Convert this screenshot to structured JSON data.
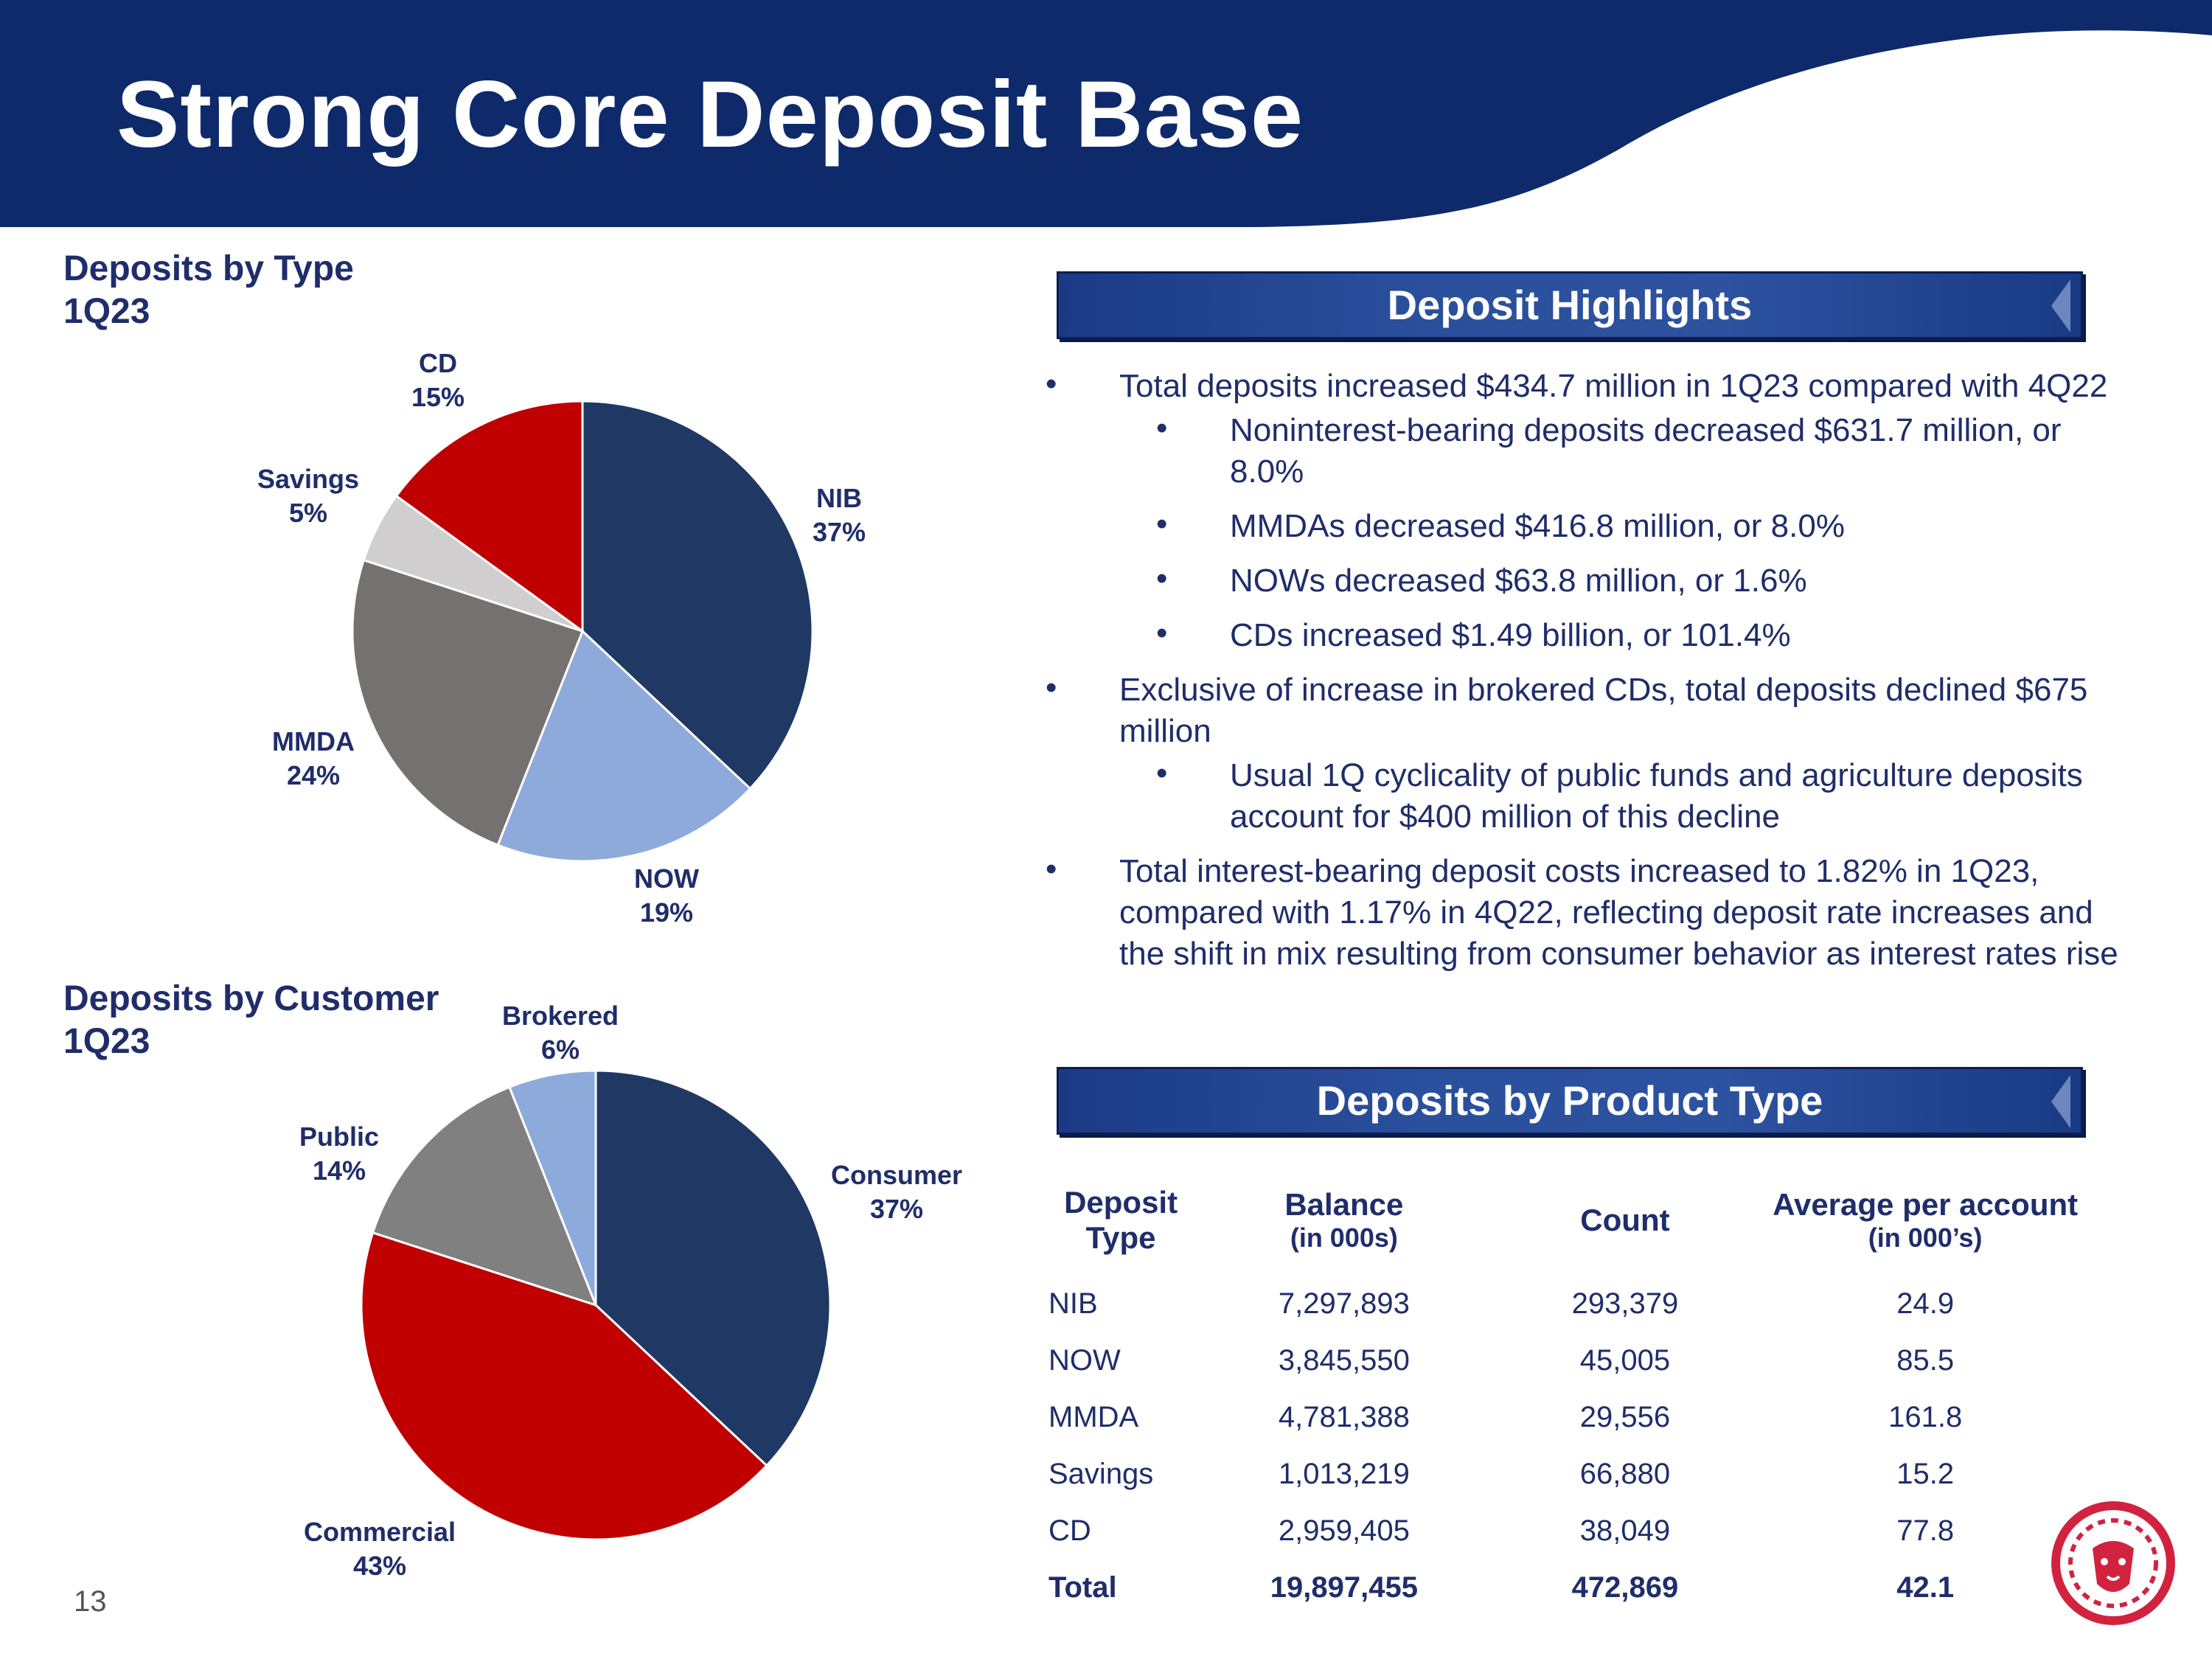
{
  "slide": {
    "title": "Strong Core Deposit Base",
    "page_number": "13"
  },
  "colors": {
    "navy": "#1f3864",
    "light_blue": "#8eaadb",
    "gray": "#767171",
    "light_gray": "#d0cece",
    "red": "#c00000",
    "header_blue": "#0e2a6b"
  },
  "chart_data": [
    {
      "type": "pie",
      "title": "Deposits by Type",
      "subtitle": "1Q23",
      "categories": [
        "NIB",
        "NOW",
        "MMDA",
        "Savings",
        "CD"
      ],
      "values": [
        37,
        19,
        24,
        5,
        15
      ],
      "labels": [
        "37%",
        "19%",
        "24%",
        "5%",
        "15%"
      ],
      "colors": [
        "#1f3864",
        "#8eaadb",
        "#767171",
        "#d0cece",
        "#c00000"
      ]
    },
    {
      "type": "pie",
      "title": "Deposits by Customer",
      "subtitle": "1Q23",
      "categories": [
        "Consumer",
        "Commercial",
        "Public",
        "Brokered"
      ],
      "values": [
        37,
        43,
        14,
        6
      ],
      "labels": [
        "37%",
        "43%",
        "14%",
        "6%"
      ],
      "colors": [
        "#1f3864",
        "#c00000",
        "#808080",
        "#8eaadb"
      ]
    }
  ],
  "highlights": {
    "heading": "Deposit Highlights",
    "bullets": [
      {
        "level": 1,
        "text": "Total deposits increased $434.7 million in 1Q23 compared with 4Q22"
      },
      {
        "level": 2,
        "text": "Noninterest-bearing deposits decreased $631.7 million, or 8.0%"
      },
      {
        "level": 2,
        "text": "MMDAs decreased $416.8 million, or 8.0%"
      },
      {
        "level": 2,
        "text": "NOWs decreased $63.8 million, or 1.6%"
      },
      {
        "level": 2,
        "text": "CDs increased $1.49 billion, or 101.4%"
      },
      {
        "level": 1,
        "text": "Exclusive of increase in brokered CDs, total deposits declined $675 million"
      },
      {
        "level": 2,
        "text": "Usual 1Q cyclicality of public funds and agriculture deposits account for $400 million of this decline"
      },
      {
        "level": 1,
        "text": "Total interest-bearing deposit costs increased to 1.82% in 1Q23, compared with 1.17% in 4Q22, reflecting deposit rate increases and the shift in mix resulting from consumer behavior as interest rates rise"
      }
    ]
  },
  "product_table": {
    "heading": "Deposits by Product Type",
    "columns": [
      {
        "main": "Deposit Type",
        "sub": ""
      },
      {
        "main": "Balance",
        "sub": "(in 000s)"
      },
      {
        "main": "Count",
        "sub": ""
      },
      {
        "main": "Average per account",
        "sub": "(in 000’s)"
      }
    ],
    "rows": [
      [
        "NIB",
        "7,297,893",
        "293,379",
        "24.9"
      ],
      [
        "NOW",
        "3,845,550",
        "45,005",
        "85.5"
      ],
      [
        "MMDA",
        "4,781,388",
        "29,556",
        "161.8"
      ],
      [
        "Savings",
        "1,013,219",
        "66,880",
        "15.2"
      ],
      [
        "CD",
        "2,959,405",
        "38,049",
        "77.8"
      ]
    ],
    "total": [
      "Total",
      "19,897,455",
      "472,869",
      "42.1"
    ]
  }
}
